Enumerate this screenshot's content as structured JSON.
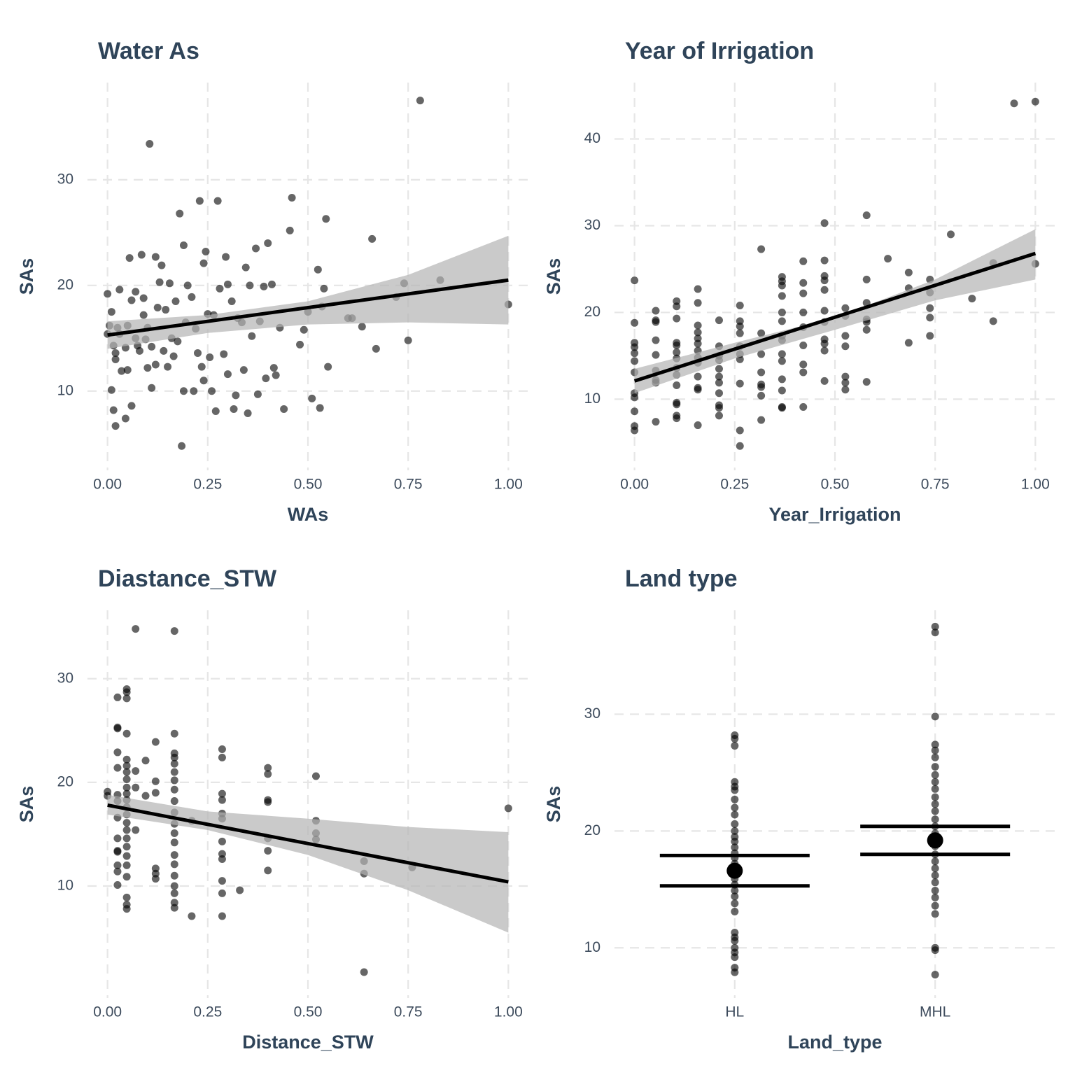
{
  "chart_data": [
    {
      "type": "scatter",
      "title": "Water As",
      "xlabel": "WAs",
      "ylabel": "SAs",
      "xlim": [
        -0.05,
        1.05
      ],
      "ylim": [
        2.5,
        39.2
      ],
      "xticks": [
        {
          "value": 0,
          "label": "0.00"
        },
        {
          "value": 0.25,
          "label": "0.25"
        },
        {
          "value": 0.5,
          "label": "0.50"
        },
        {
          "value": 0.75,
          "label": "0.75"
        },
        {
          "value": 1,
          "label": "1.00"
        }
      ],
      "yticks": [
        10,
        20,
        30
      ],
      "grid": true,
      "color": "#000000",
      "x": [
        0,
        0,
        0.005,
        0.01,
        0.01,
        0.015,
        0.015,
        0.02,
        0.02,
        0.02,
        0.025,
        0.03,
        0.03,
        0.035,
        0.045,
        0.045,
        0.05,
        0.05,
        0.055,
        0.06,
        0.06,
        0.07,
        0.07,
        0.075,
        0.08,
        0.085,
        0.09,
        0.09,
        0.095,
        0.1,
        0.1,
        0.105,
        0.11,
        0.11,
        0.12,
        0.12,
        0.125,
        0.13,
        0.135,
        0.14,
        0.145,
        0.15,
        0.155,
        0.16,
        0.165,
        0.17,
        0.175,
        0.18,
        0.185,
        0.19,
        0.19,
        0.195,
        0.2,
        0.21,
        0.215,
        0.22,
        0.225,
        0.23,
        0.235,
        0.24,
        0.24,
        0.245,
        0.25,
        0.255,
        0.26,
        0.265,
        0.27,
        0.275,
        0.28,
        0.29,
        0.295,
        0.3,
        0.3,
        0.31,
        0.315,
        0.32,
        0.325,
        0.335,
        0.34,
        0.345,
        0.35,
        0.355,
        0.36,
        0.37,
        0.375,
        0.38,
        0.39,
        0.395,
        0.4,
        0.41,
        0.415,
        0.42,
        0.43,
        0.44,
        0.455,
        0.46,
        0.48,
        0.49,
        0.5,
        0.51,
        0.525,
        0.53,
        0.535,
        0.54,
        0.545,
        0.55,
        0.6,
        0.61,
        0.635,
        0.66,
        0.67,
        0.72,
        0.74,
        0.75,
        0.78,
        0.83,
        1.0
      ],
      "y": [
        15.4,
        19.2,
        16.2,
        10.1,
        17.5,
        8.2,
        14.3,
        6.7,
        13.0,
        13.6,
        16.0,
        15.4,
        19.6,
        11.9,
        7.4,
        14.1,
        12.0,
        16.2,
        22.6,
        8.6,
        18.6,
        15.0,
        19.4,
        14.3,
        13.8,
        22.9,
        17.2,
        18.8,
        14.9,
        12.2,
        16.0,
        33.4,
        10.3,
        14.2,
        22.7,
        12.5,
        17.9,
        20.3,
        21.9,
        13.8,
        17.7,
        12.3,
        20.2,
        15.0,
        13.3,
        18.5,
        14.7,
        26.8,
        4.8,
        10.0,
        23.8,
        16.5,
        20.0,
        18.9,
        10.0,
        15.9,
        13.6,
        28.0,
        12.3,
        22.1,
        11.0,
        23.2,
        17.3,
        13.2,
        10.0,
        17.2,
        8.1,
        28.0,
        19.7,
        13.5,
        22.7,
        11.6,
        20.1,
        18.5,
        8.3,
        9.6,
        16.9,
        16.5,
        12.0,
        21.7,
        7.9,
        20.0,
        15.2,
        23.5,
        9.7,
        16.6,
        19.9,
        11.2,
        24.0,
        20.1,
        12.2,
        11.5,
        16.0,
        8.3,
        25.2,
        28.3,
        14.4,
        15.8,
        17.5,
        9.3,
        21.5,
        8.4,
        18.0,
        19.7,
        26.3,
        12.3,
        16.9,
        16.9,
        16.1,
        24.4,
        14.0,
        18.9,
        20.2,
        14.8,
        37.5,
        20.5,
        18.2
      ],
      "fit": {
        "x": [
          0,
          1
        ],
        "y": [
          15.3,
          20.5
        ]
      },
      "band": {
        "x": [
          0,
          0.25,
          0.5,
          0.75,
          1
        ],
        "lower": [
          14.0,
          15.5,
          16.3,
          16.5,
          16.3
        ],
        "upper": [
          16.6,
          17.2,
          18.5,
          21.0,
          24.7
        ]
      }
    },
    {
      "type": "scatter",
      "title": "Year of Irrigation",
      "xlabel": "Year_Irrigation",
      "ylabel": "SAs",
      "xlim": [
        -0.05,
        1.05
      ],
      "ylim": [
        1.8,
        46.5
      ],
      "xticks": [
        {
          "value": 0,
          "label": "0.00"
        },
        {
          "value": 0.25,
          "label": "0.25"
        },
        {
          "value": 0.5,
          "label": "0.50"
        },
        {
          "value": 0.75,
          "label": "0.75"
        },
        {
          "value": 1,
          "label": "1.00"
        }
      ],
      "yticks": [
        10,
        20,
        30,
        40
      ],
      "grid": true,
      "color": "#000000",
      "x": [
        0,
        0,
        0,
        0,
        0,
        0,
        0,
        0,
        0,
        0,
        0,
        0,
        0.053,
        0.053,
        0.053,
        0.053,
        0.053,
        0.053,
        0.053,
        0.053,
        0.053,
        0.105,
        0.105,
        0.105,
        0.105,
        0.105,
        0.105,
        0.105,
        0.105,
        0.105,
        0.105,
        0.105,
        0.105,
        0.105,
        0.105,
        0.158,
        0.158,
        0.158,
        0.158,
        0.158,
        0.158,
        0.158,
        0.158,
        0.158,
        0.158,
        0.158,
        0.158,
        0.158,
        0.211,
        0.211,
        0.211,
        0.211,
        0.211,
        0.211,
        0.211,
        0.211,
        0.211,
        0.211,
        0.211,
        0.263,
        0.263,
        0.263,
        0.263,
        0.263,
        0.263,
        0.263,
        0.263,
        0.263,
        0.263,
        0.316,
        0.316,
        0.316,
        0.316,
        0.316,
        0.316,
        0.316,
        0.316,
        0.368,
        0.368,
        0.368,
        0.368,
        0.368,
        0.368,
        0.368,
        0.368,
        0.368,
        0.368,
        0.368,
        0.368,
        0.368,
        0.368,
        0.421,
        0.421,
        0.421,
        0.421,
        0.421,
        0.421,
        0.421,
        0.421,
        0.421,
        0.474,
        0.474,
        0.474,
        0.474,
        0.474,
        0.474,
        0.474,
        0.474,
        0.474,
        0.474,
        0.474,
        0.526,
        0.526,
        0.526,
        0.526,
        0.526,
        0.526,
        0.526,
        0.579,
        0.579,
        0.579,
        0.579,
        0.579,
        0.579,
        0.579,
        0.632,
        0.684,
        0.684,
        0.684,
        0.737,
        0.737,
        0.737,
        0.737,
        0.737,
        0.789,
        0.842,
        0.895,
        0.895,
        0.947,
        1,
        1
      ],
      "y": [
        23.7,
        18.8,
        16.5,
        16.0,
        15.3,
        14.4,
        13.1,
        10.7,
        10.2,
        8.6,
        6.9,
        6.4,
        20.2,
        19.1,
        18.9,
        16.8,
        15.1,
        13.3,
        12.2,
        11.9,
        7.4,
        21.3,
        20.7,
        19.3,
        16.5,
        16.2,
        15.4,
        14.7,
        13.6,
        12.8,
        11.6,
        9.6,
        9.4,
        8.1,
        7.8,
        22.7,
        21.1,
        18.5,
        17.7,
        17.0,
        16.4,
        15.6,
        14.8,
        14.2,
        12.6,
        11.3,
        11.1,
        7.0,
        19.1,
        16.1,
        15.0,
        14.5,
        13.5,
        12.6,
        11.9,
        10.7,
        9.3,
        9.0,
        8.1,
        20.8,
        19.0,
        18.4,
        17.6,
        16.1,
        15.2,
        14.6,
        11.8,
        6.4,
        4.6,
        27.3,
        17.6,
        15.2,
        13.1,
        11.7,
        11.4,
        10.4,
        7.6,
        24.1,
        23.6,
        23.1,
        21.9,
        20.0,
        19.0,
        17.3,
        16.8,
        15.2,
        14.4,
        12.3,
        11.0,
        9.1,
        9.0,
        25.9,
        23.4,
        22.2,
        20.0,
        18.3,
        16.2,
        14.0,
        13.1,
        9.1,
        30.3,
        26.0,
        24.2,
        23.7,
        22.6,
        20.2,
        18.9,
        16.9,
        16.4,
        15.6,
        12.1,
        20.5,
        19.6,
        17.3,
        16.1,
        12.6,
        11.9,
        11.1,
        31.2,
        23.8,
        21.1,
        19.2,
        18.9,
        18.0,
        12.0,
        26.2,
        24.6,
        22.8,
        16.5,
        23.8,
        22.3,
        20.5,
        19.4,
        17.3,
        29.0,
        21.6,
        25.7,
        19.0,
        44.1,
        44.3,
        25.6
      ],
      "fit": {
        "x": [
          0,
          1
        ],
        "y": [
          12.1,
          26.8
        ]
      },
      "band": {
        "x": [
          0,
          0.25,
          0.5,
          0.75,
          1
        ],
        "lower": [
          10.7,
          14.7,
          18.0,
          21.4,
          23.8
        ],
        "upper": [
          13.5,
          16.5,
          19.4,
          23.8,
          29.6
        ]
      }
    },
    {
      "type": "scatter",
      "title": "Diastance_STW",
      "xlabel": "Distance_STW",
      "ylabel": "SAs",
      "xlim": [
        -0.05,
        1.05
      ],
      "ylim": [
        -0.8,
        36.6
      ],
      "xticks": [
        {
          "value": 0,
          "label": "0.00"
        },
        {
          "value": 0.25,
          "label": "0.25"
        },
        {
          "value": 0.5,
          "label": "0.50"
        },
        {
          "value": 0.75,
          "label": "0.75"
        },
        {
          "value": 1,
          "label": "1.00"
        }
      ],
      "yticks": [
        10,
        20,
        30
      ],
      "grid": true,
      "color": "#000000",
      "x": [
        0,
        0,
        0.025,
        0.025,
        0.025,
        0.025,
        0.025,
        0.025,
        0.025,
        0.025,
        0.025,
        0.025,
        0.025,
        0.025,
        0.025,
        0.025,
        0.048,
        0.048,
        0.048,
        0.048,
        0.048,
        0.048,
        0.048,
        0.048,
        0.048,
        0.048,
        0.048,
        0.048,
        0.048,
        0.048,
        0.048,
        0.048,
        0.048,
        0.048,
        0.048,
        0.048,
        0.048,
        0.048,
        0.048,
        0.07,
        0.07,
        0.07,
        0.07,
        0.095,
        0.095,
        0.12,
        0.12,
        0.12,
        0.12,
        0.12,
        0.12,
        0.167,
        0.167,
        0.167,
        0.167,
        0.167,
        0.167,
        0.167,
        0.167,
        0.167,
        0.167,
        0.167,
        0.167,
        0.167,
        0.167,
        0.167,
        0.167,
        0.167,
        0.167,
        0.167,
        0.167,
        0.21,
        0.21,
        0.286,
        0.286,
        0.286,
        0.286,
        0.286,
        0.286,
        0.286,
        0.286,
        0.286,
        0.286,
        0.286,
        0.286,
        0.33,
        0.4,
        0.4,
        0.4,
        0.4,
        0.4,
        0.4,
        0.4,
        0.52,
        0.52,
        0.52,
        0.52,
        0.64,
        0.64,
        0.64,
        0.76,
        1
      ],
      "y": [
        19.1,
        18.7,
        28.2,
        25.3,
        25.2,
        22.9,
        21.4,
        18.8,
        18.2,
        16.6,
        14.6,
        13.4,
        13.3,
        12.0,
        11.4,
        10.1,
        29.0,
        28.7,
        28.1,
        24.7,
        22.2,
        21.6,
        21.0,
        20.3,
        19.5,
        18.9,
        18.3,
        17.6,
        16.9,
        16.1,
        15.4,
        14.6,
        13.8,
        12.9,
        12.0,
        10.9,
        8.9,
        8.2,
        7.8,
        34.8,
        21.1,
        19.5,
        15.4,
        22.1,
        18.7,
        23.9,
        20.1,
        19.0,
        11.7,
        11.2,
        10.7,
        34.6,
        24.7,
        22.8,
        22.4,
        21.8,
        21.0,
        20.2,
        19.3,
        18.2,
        17.1,
        16.0,
        15.1,
        14.2,
        13.0,
        12.1,
        11.0,
        10.0,
        9.3,
        8.4,
        7.9,
        16.3,
        7.1,
        23.2,
        22.4,
        18.9,
        18.3,
        17.0,
        16.5,
        14.3,
        13.1,
        12.6,
        10.5,
        9.3,
        7.1,
        9.6,
        21.4,
        20.8,
        18.3,
        18.1,
        14.6,
        13.4,
        11.5,
        20.6,
        16.3,
        15.1,
        14.5,
        12.4,
        11.2,
        1.7,
        11.8,
        17.5
      ],
      "fit": {
        "x": [
          0,
          1
        ],
        "y": [
          17.8,
          10.4
        ]
      },
      "band": {
        "x": [
          0,
          0.25,
          0.5,
          0.75,
          1
        ],
        "lower": [
          16.9,
          15.4,
          13.0,
          9.6,
          5.5
        ],
        "upper": [
          18.8,
          17.2,
          16.5,
          15.7,
          15.2
        ]
      }
    },
    {
      "type": "strip",
      "title": "Land type",
      "xlabel": "Land_type",
      "ylabel": "SAs",
      "categories": [
        "HL",
        "MHL"
      ],
      "ylim": [
        5.7,
        38.9
      ],
      "yticks": [
        10,
        20,
        30
      ],
      "grid": true,
      "color": "#000000",
      "groups": [
        [
          28.2,
          27.9,
          27.3,
          24.2,
          23.8,
          23.5,
          22.7,
          22.0,
          21.4,
          20.6,
          20.0,
          19.5,
          19.1,
          18.6,
          18.1,
          17.7,
          17.2,
          16.8,
          16.3,
          15.9,
          15.4,
          14.9,
          14.4,
          13.8,
          13.1,
          11.3,
          10.9,
          10.6,
          10.0,
          9.6,
          9.2,
          8.3,
          7.9
        ],
        [
          37.5,
          37.0,
          29.8,
          27.4,
          26.9,
          26.3,
          25.5,
          24.8,
          24.2,
          23.6,
          22.9,
          22.3,
          21.7,
          21.0,
          20.4,
          19.8,
          19.3,
          18.7,
          18.0,
          17.4,
          16.8,
          16.2,
          15.6,
          14.9,
          14.3,
          13.6,
          12.9,
          10.0,
          9.8,
          7.7
        ]
      ],
      "mean": [
        16.6,
        19.2
      ],
      "ci_lower": [
        15.3,
        18.0
      ],
      "ci_upper": [
        17.9,
        20.4
      ]
    }
  ]
}
